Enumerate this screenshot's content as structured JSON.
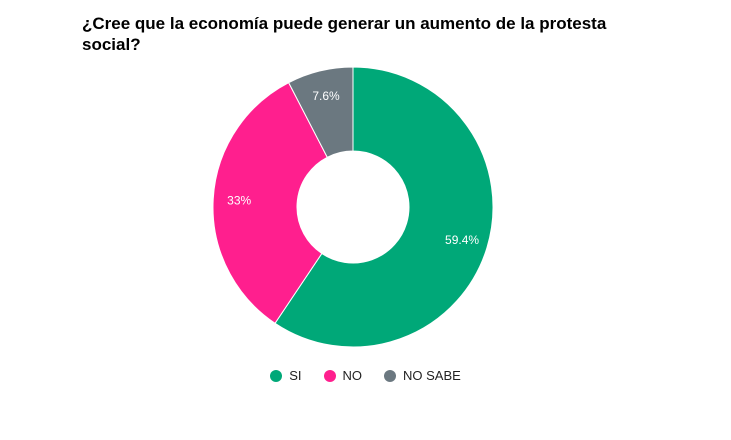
{
  "title": "¿Cree que la economía puede generar un aumento de la protesta social?",
  "chart_data": {
    "type": "pie",
    "donut": true,
    "title": "¿Cree que la economía puede generar un aumento de la protesta social?",
    "start_direction": "top",
    "direction": "clockwise",
    "legend_position": "bottom",
    "slices": [
      {
        "label": "SI",
        "value": 59.4,
        "display": "59.4%",
        "color": "#00a878"
      },
      {
        "label": "NO",
        "value": 33,
        "display": "33%",
        "color": "#ff1f8e"
      },
      {
        "label": "NO SABE",
        "value": 7.6,
        "display": "7.6%",
        "color": "#6b7880"
      }
    ]
  }
}
